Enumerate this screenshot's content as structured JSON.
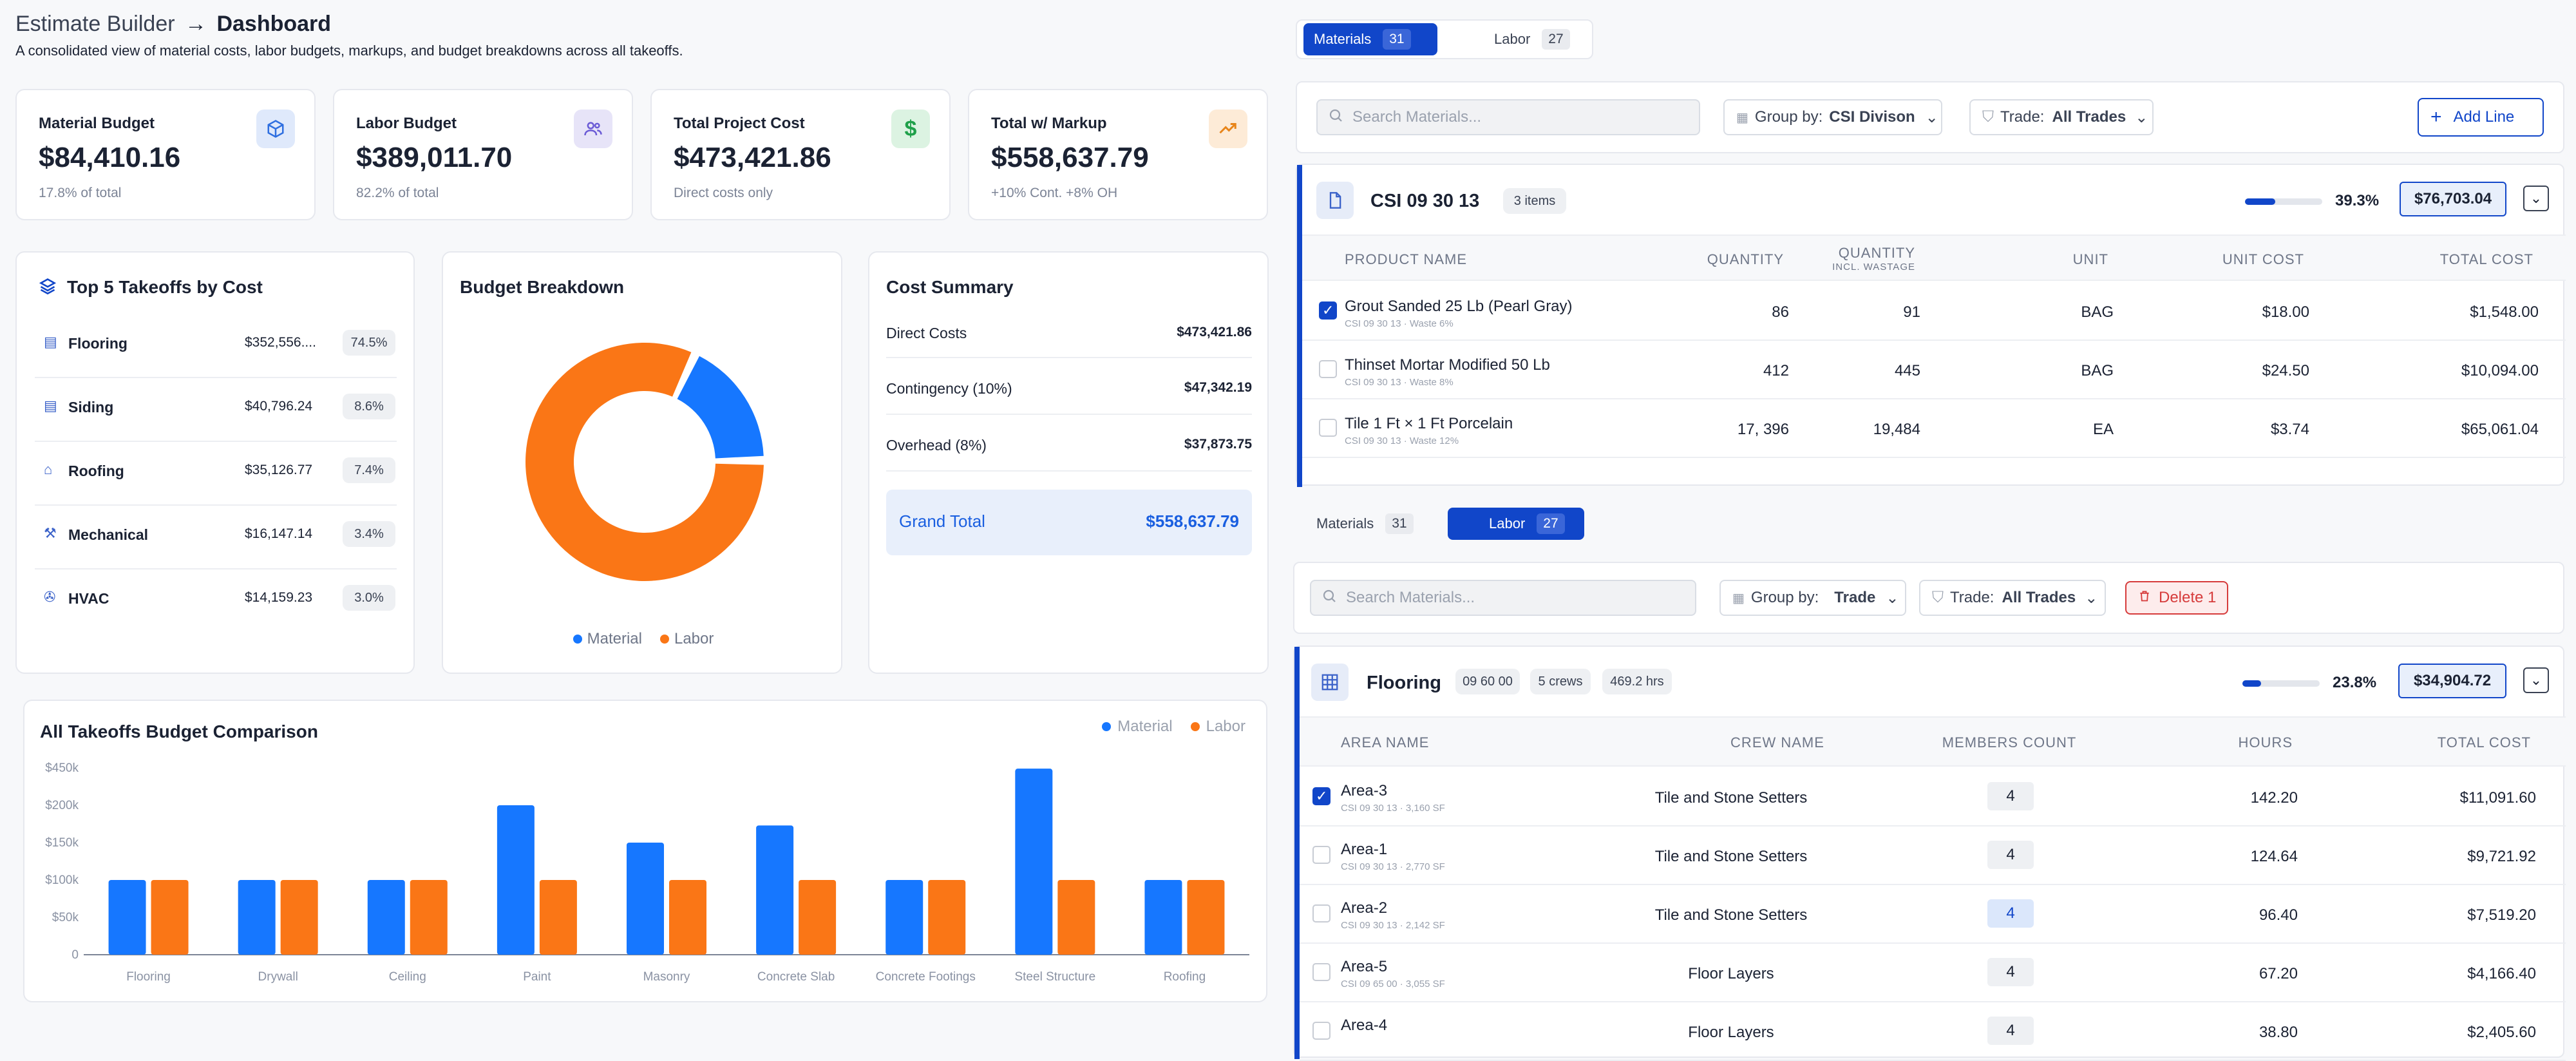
{
  "header": {
    "app": "Estimate Builder",
    "arrow": "→",
    "page": "Dashboard",
    "subtitle": "A consolidated view of material costs, labor budgets, markups, and budget breakdowns across all takeoffs."
  },
  "stats": [
    {
      "label": "Material Budget",
      "value": "$84,410.16",
      "note": "17.8% of total",
      "icon": "cube-icon",
      "color": "#2f6fe0"
    },
    {
      "label": "Labor Budget",
      "value": "$389,011.70",
      "note": "82.2% of total",
      "icon": "users-icon",
      "color": "#6b5bd6"
    },
    {
      "label": "Total Project Cost",
      "value": "$473,421.86",
      "note": "Direct costs only",
      "icon": "dollar-icon",
      "color": "#1fa04a"
    },
    {
      "label": "Total w/ Markup",
      "value": "$558,637.79",
      "note": "+10% Cont. +8% OH",
      "icon": "trend-up-icon",
      "color": "#e8851a"
    }
  ],
  "top5": {
    "title": "Top 5 Takeoffs by Cost",
    "items": [
      {
        "name": "Flooring",
        "cost": "$352,556....",
        "pct": "74.5%"
      },
      {
        "name": "Siding",
        "cost": "$40,796.24",
        "pct": "8.6%"
      },
      {
        "name": "Roofing",
        "cost": "$35,126.77",
        "pct": "7.4%"
      },
      {
        "name": "Mechanical",
        "cost": "$16,147.14",
        "pct": "3.4%"
      },
      {
        "name": "HVAC",
        "cost": "$14,159.23",
        "pct": "3.0%"
      }
    ]
  },
  "breakdown": {
    "title": "Budget Breakdown",
    "legend": [
      "Material",
      "Labor"
    ],
    "material_fraction": 0.178,
    "colors": {
      "material": "#1677ff",
      "labor": "#fa7616"
    }
  },
  "summary": {
    "title": "Cost Summary",
    "rows": [
      {
        "label": "Direct Costs",
        "value": "$473,421.86"
      },
      {
        "label": "Contingency (10%)",
        "value": "$47,342.19"
      },
      {
        "label": "Overhead (8%)",
        "value": "$37,873.75"
      }
    ],
    "grand_label": "Grand Total",
    "grand_value": "$558,637.79"
  },
  "chart_data": {
    "type": "bar",
    "title": "All Takeoffs Budget Comparison",
    "categories": [
      "Flooring",
      "Drywall",
      "Ceiling",
      "Paint",
      "Masonry",
      "Concrete Slab",
      "Concrete Footings",
      "Steel Structure",
      "Roofing"
    ],
    "series": [
      {
        "name": "Material",
        "values": [
          100,
          100,
          100,
          200,
          150,
          173,
          100,
          445,
          100
        ]
      },
      {
        "name": "Labor",
        "values": [
          100,
          100,
          100,
          100,
          100,
          100,
          100,
          100,
          100
        ]
      }
    ],
    "y_ticks": [
      "0",
      "$50k",
      "$100k",
      "$150k",
      "$200k",
      "$450k"
    ],
    "ylim": [
      0,
      450
    ],
    "legend": "top-right",
    "grid": false
  },
  "materials_panel": {
    "tabs": [
      {
        "label": "Materials",
        "count": "31"
      },
      {
        "label": "Labor",
        "count": "27"
      }
    ],
    "search_placeholder": "Search Materials...",
    "group_label": "Group by:",
    "group_value": "CSI Divison",
    "trade_label": "Trade:",
    "trade_value": "All Trades",
    "add_label": "Add Line",
    "group": {
      "title": "CSI 09 30 13",
      "badge": "3 items",
      "pct": "39.3%",
      "progress": 0.393,
      "total": "$76,703.04"
    },
    "columns": [
      "PRODUCT NAME",
      "QUANTITY",
      "QUANTITY",
      "INCL. WASTAGE",
      "UNIT",
      "UNIT COST",
      "TOTAL COST"
    ],
    "rows": [
      {
        "name": "Grout Sanded 25 Lb (Pearl Gray)",
        "sub": "CSI 09 30 13 · Waste 6%",
        "qty": "86",
        "qtyw": "91",
        "unit": "BAG",
        "unit_cost": "$18.00",
        "total": "$1,548.00",
        "checked": true
      },
      {
        "name": "Thinset Mortar Modified 50 Lb",
        "sub": "CSI 09 30 13 · Waste 8%",
        "qty": "412",
        "qtyw": "445",
        "unit": "BAG",
        "unit_cost": "$24.50",
        "total": "$10,094.00",
        "checked": false
      },
      {
        "name": "Tile 1 Ft × 1 Ft Porcelain",
        "sub": "CSI 09 30 13 · Waste 12%",
        "qty": "17, 396",
        "qtyw": "19,484",
        "unit": "EA",
        "unit_cost": "$3.74",
        "total": "$65,061.04",
        "checked": false
      }
    ]
  },
  "labor_panel": {
    "tabs": [
      {
        "label": "Materials",
        "count": "31"
      },
      {
        "label": "Labor",
        "count": "27"
      }
    ],
    "search_placeholder": "Search Materials...",
    "group_label": "Group by:",
    "group_value": "Trade",
    "trade_label": "Trade:",
    "trade_value": "All Trades",
    "delete_label": "Delete 1",
    "group": {
      "title": "Flooring",
      "code": "09 60 00",
      "crews": "5 crews",
      "hrs": "469.2 hrs",
      "pct": "23.8%",
      "progress": 0.238,
      "total": "$34,904.72"
    },
    "columns": [
      "AREA NAME",
      "CREW NAME",
      "MEMBERS COUNT",
      "HOURS",
      "TOTAL COST"
    ],
    "rows": [
      {
        "name": "Area-3",
        "sub": "CSI 09 30 13 · 3,160 SF",
        "crew": "Tile and Stone Setters",
        "members": "4",
        "hours": "142.20",
        "total": "$11,091.60",
        "checked": true
      },
      {
        "name": "Area-1",
        "sub": "CSI 09 30 13 · 2,770 SF",
        "crew": "Tile and Stone Setters",
        "members": "4",
        "hours": "124.64",
        "total": "$9,721.92",
        "checked": false
      },
      {
        "name": "Area-2",
        "sub": "CSI 09 30 13 · 2,142 SF",
        "crew": "Tile and Stone Setters",
        "members": "4",
        "hours": "96.40",
        "total": "$7,519.20",
        "checked": false,
        "highlight": true
      },
      {
        "name": "Area-5",
        "sub": "CSI 09 65 00 · 3,055 SF",
        "crew": "Floor Layers",
        "members": "4",
        "hours": "67.20",
        "total": "$4,166.40",
        "checked": false
      },
      {
        "name": "Area-4",
        "sub": "",
        "crew": "Floor Layers",
        "members": "4",
        "hours": "38.80",
        "total": "$2,405.60",
        "checked": false
      }
    ]
  }
}
